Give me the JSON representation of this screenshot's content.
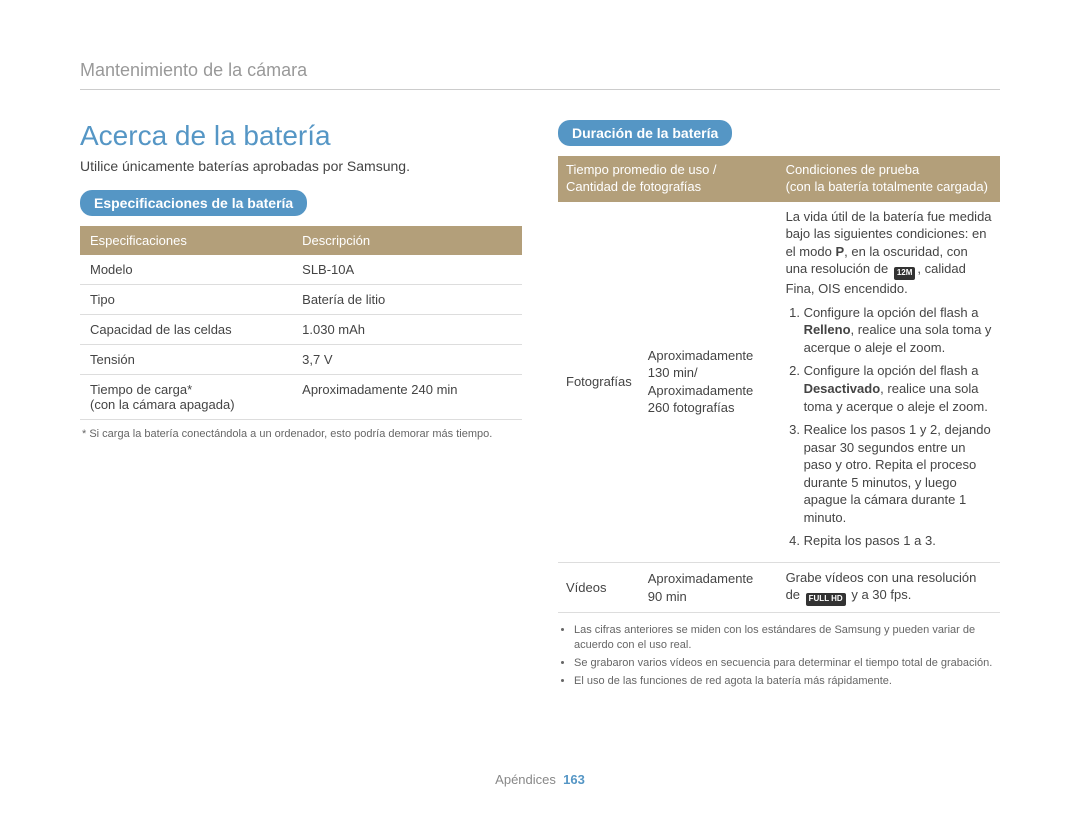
{
  "breadcrumb": "Mantenimiento de la cámara",
  "left": {
    "title": "Acerca de la batería",
    "subtitle": "Utilice únicamente baterías aprobadas por Samsung.",
    "section_badge": "Especificaciones de la batería",
    "spec_table": {
      "headers": {
        "spec": "Especificaciones",
        "desc": "Descripción"
      },
      "rows": [
        {
          "spec": "Modelo",
          "desc": "SLB-10A"
        },
        {
          "spec": "Tipo",
          "desc": "Batería de litio"
        },
        {
          "spec": "Capacidad de las celdas",
          "desc": "1.030 mAh"
        },
        {
          "spec": "Tensión",
          "desc": "3,7 V"
        },
        {
          "spec_a": "Tiempo de carga*",
          "spec_b": "(con la cámara apagada)",
          "desc": "Aproximadamente 240 min"
        }
      ]
    },
    "footnote": "* Si carga la batería conectándola a un ordenador, esto podría demorar más tiempo."
  },
  "right": {
    "section_badge": "Duración de la batería",
    "life_table": {
      "headers": {
        "col1": "Tiempo promedio de uso / Cantidad de fotografías",
        "col2a": "Condiciones de prueba",
        "col2b": "(con la batería totalmente cargada)"
      },
      "row_photos": {
        "label": "Fotografías",
        "metric": "Aproximadamente 130 min/ Aproximadamente 260 fotografías",
        "intro_a": "La vida útil de la batería fue medida bajo las siguientes condiciones: en el modo ",
        "mode_icon": "P",
        "intro_b": ", en la oscuridad, con una resolución de ",
        "res_icon": "12M",
        "intro_c": ", calidad Fina, OIS encendido.",
        "steps": {
          "s1a": "Configure la opción del flash a ",
          "s1b": "Relleno",
          "s1c": ", realice una sola toma y acerque o aleje el zoom.",
          "s2a": "Configure la opción del flash a ",
          "s2b": "Desactivado",
          "s2c": ", realice una sola toma y acerque o aleje el zoom.",
          "s3": "Realice los pasos 1 y 2, dejando pasar 30 segundos entre un paso y otro. Repita el proceso durante 5 minutos, y luego apague la cámara durante 1 minuto.",
          "s4": "Repita los pasos 1 a 3."
        }
      },
      "row_videos": {
        "label": "Vídeos",
        "metric": "Aproximadamente 90 min",
        "cond_a": "Grabe vídeos con una resolución de ",
        "hd_icon": "FULL HD",
        "cond_b": " y a 30 fps."
      }
    },
    "notes": [
      "Las cifras anteriores se miden con los estándares de Samsung y pueden variar de acuerdo con el uso real.",
      "Se grabaron varios vídeos en secuencia para determinar el tiempo total de grabación.",
      "El uso de las funciones de red agota la batería más rápidamente."
    ]
  },
  "footer": {
    "section": "Apéndices",
    "page": "163"
  },
  "colors": {
    "badge_blue": "#5596c5",
    "table_header_brown": "#b39f7a",
    "text": "#444444",
    "icon_bg": "#333333"
  }
}
